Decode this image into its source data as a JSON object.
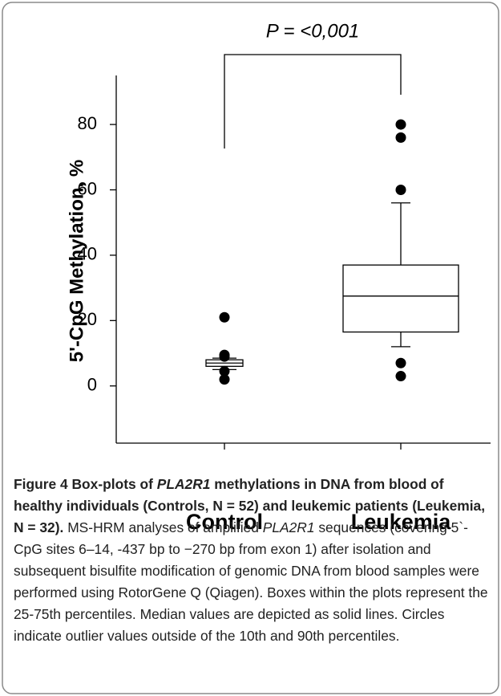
{
  "chart_data": {
    "type": "box",
    "annotation": "P = <0,001",
    "y_label": "5'-CpG Methylation, %",
    "categories": [
      "Control",
      "Leukemia"
    ],
    "boxes": [
      {
        "q1": 6,
        "median": 7,
        "q3": 8,
        "whislo": 5,
        "whishi": 8.5,
        "fliers": [
          21,
          9.5,
          9,
          4.5,
          2
        ]
      },
      {
        "q1": 16.5,
        "median": 27.5,
        "q3": 37,
        "whislo": 12,
        "whishi": 56,
        "fliers": [
          80,
          76,
          60,
          7,
          3
        ]
      }
    ],
    "color": "#000000",
    "ylim": [
      -17.5,
      95
    ],
    "yticks": [
      0,
      20,
      40,
      60,
      80
    ],
    "grid": false
  },
  "caption": {
    "segments": [
      {
        "text": "Figure 4 Box-plots of ",
        "style": "bold"
      },
      {
        "text": "PLA2R1",
        "style": "bold-italic"
      },
      {
        "text": " methylations in DNA from blood of healthy individuals (Controls, N = 52) and leukemic patients (Leukemia, N = 32).",
        "style": "bold"
      },
      {
        "text": " MS-HRM analyses of amplified ",
        "style": "normal"
      },
      {
        "text": "PLA2R1",
        "style": "italic"
      },
      {
        "text": " sequences (covering 5`-CpG sites 6–14, -437 bp to −270 bp from exon 1) after isolation and subsequent bisulfite modification of genomic DNA from blood samples were performed using RotorGene Q (Qiagen). Boxes within the plots represent the 25-75th percentiles. Median values are depicted as solid lines. Circles indicate outlier values outside of the 10th and 90th percentiles.",
        "style": "normal"
      }
    ]
  }
}
